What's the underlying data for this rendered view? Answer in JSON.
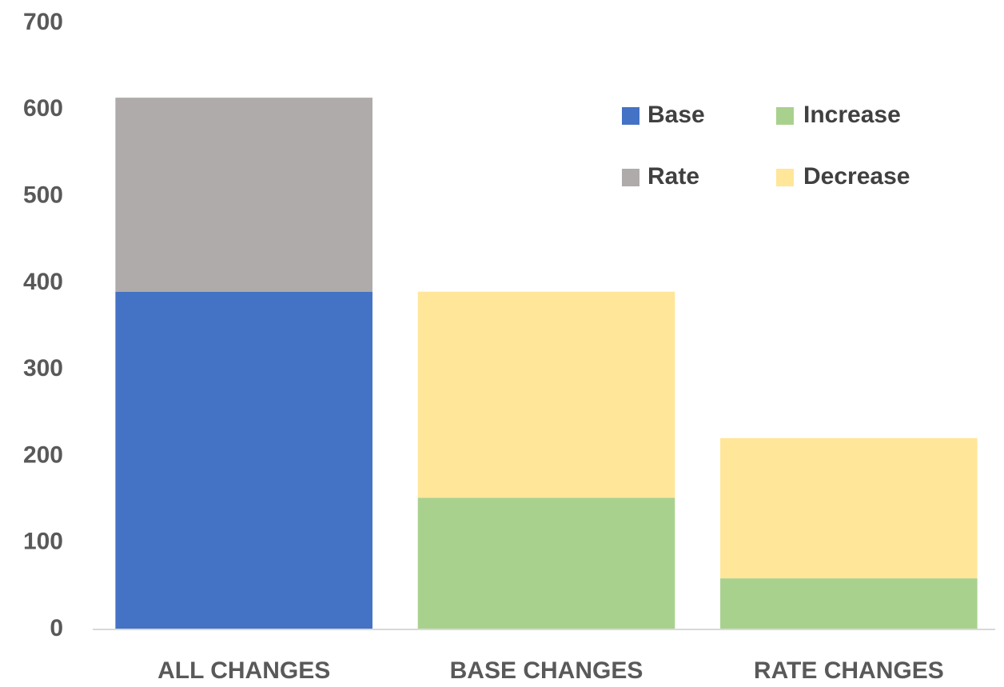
{
  "chart_data": {
    "type": "stacked-bar",
    "categories": [
      "ALL CHANGES",
      "BASE CHANGES",
      "RATE CHANGES"
    ],
    "series": [
      {
        "name": "Base",
        "color": "#4472c4",
        "values": [
          390,
          null,
          null
        ]
      },
      {
        "name": "Rate",
        "color": "#afabab",
        "values": [
          224,
          null,
          null
        ]
      },
      {
        "name": "Increase",
        "color": "#a9d18e",
        "values": [
          null,
          152,
          59
        ]
      },
      {
        "name": "Decrease",
        "color": "#ffe699",
        "values": [
          null,
          238,
          162
        ]
      }
    ],
    "ylim": [
      0,
      700
    ],
    "yticks": [
      0,
      100,
      200,
      300,
      400,
      500,
      600,
      700
    ],
    "grid": false,
    "legend": "upper-right"
  }
}
